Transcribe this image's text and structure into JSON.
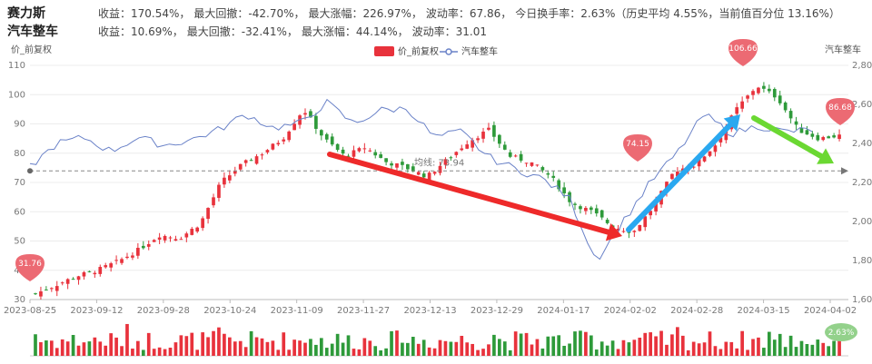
{
  "header": {
    "stock": {
      "name": "赛力斯",
      "segments": [
        "收益：170.54%，",
        "最大回撤：-42.70%，",
        "最大涨幅：226.97%，",
        "波动率：67.86，",
        "今日换手率：2.63%（历史平均 4.55%，当前值百分位 13.16%）"
      ]
    },
    "sector": {
      "name": "汽车整车",
      "segments": [
        "收益：10.69%，",
        "最大回撤：-32.41%，",
        "最大涨幅：44.14%，",
        "波动率：31.01"
      ]
    }
  },
  "chart_data": {
    "type": "candlestick",
    "title": "",
    "left_axis_title": "价_前复权",
    "right_axis_title": "汽车整车",
    "legend": [
      "价_前复权",
      "汽车整车"
    ],
    "left_ylim": [
      30,
      110
    ],
    "left_ticks": [
      30,
      40,
      50,
      60,
      70,
      80,
      90,
      100,
      110
    ],
    "right_ylim": [
      1600,
      2800
    ],
    "right_ticks": [
      1600,
      1800,
      2000,
      2200,
      2400,
      2600,
      2800
    ],
    "x_ticks": [
      "2023-08-25",
      "2023-09-12",
      "2023-09-28",
      "2023-10-24",
      "2023-11-09",
      "2023-11-27",
      "2023-12-13",
      "2023-12-29",
      "2024-01-17",
      "2024-02-02",
      "2024-02-28",
      "2024-03-15",
      "2024-04-02"
    ],
    "close_path": [
      32,
      35,
      38,
      40,
      43,
      47,
      52,
      51,
      56,
      70,
      76,
      80,
      85,
      95,
      85,
      79,
      82,
      77,
      75,
      72,
      78,
      84,
      88,
      79,
      77,
      72,
      63,
      60,
      55,
      53,
      62,
      74,
      76,
      83,
      95,
      103,
      99,
      88,
      85,
      86
    ],
    "sector_path": [
      2280,
      2400,
      2430,
      2360,
      2430,
      2390,
      2420,
      2470,
      2550,
      2480,
      2500,
      2610,
      2500,
      2570,
      2580,
      2430,
      2460,
      2330,
      2270,
      2220,
      2120,
      1800,
      2000,
      2200,
      2350,
      2550,
      2450,
      2490,
      2460,
      2470
    ],
    "volume_color_pattern": "mixed red/green daily volume bars",
    "markers": [
      {
        "label": "31.76",
        "type": "low"
      },
      {
        "label": "74.15",
        "type": "high"
      },
      {
        "label": "106.66",
        "type": "high"
      },
      {
        "label": "86.68",
        "type": "last"
      }
    ],
    "average_line": {
      "label": "均线: 73.94",
      "value": 73.94
    },
    "turnover_badge": "2.63%",
    "colors": {
      "up": "#e8323c",
      "down": "#2e9a3a",
      "sector": "#6a82c8",
      "arrow_red": "#ee2a2a",
      "arrow_blue": "#2aa8f0",
      "arrow_green": "#6bd832",
      "marker": "#ec6a73",
      "badge": "#93d18b"
    }
  }
}
